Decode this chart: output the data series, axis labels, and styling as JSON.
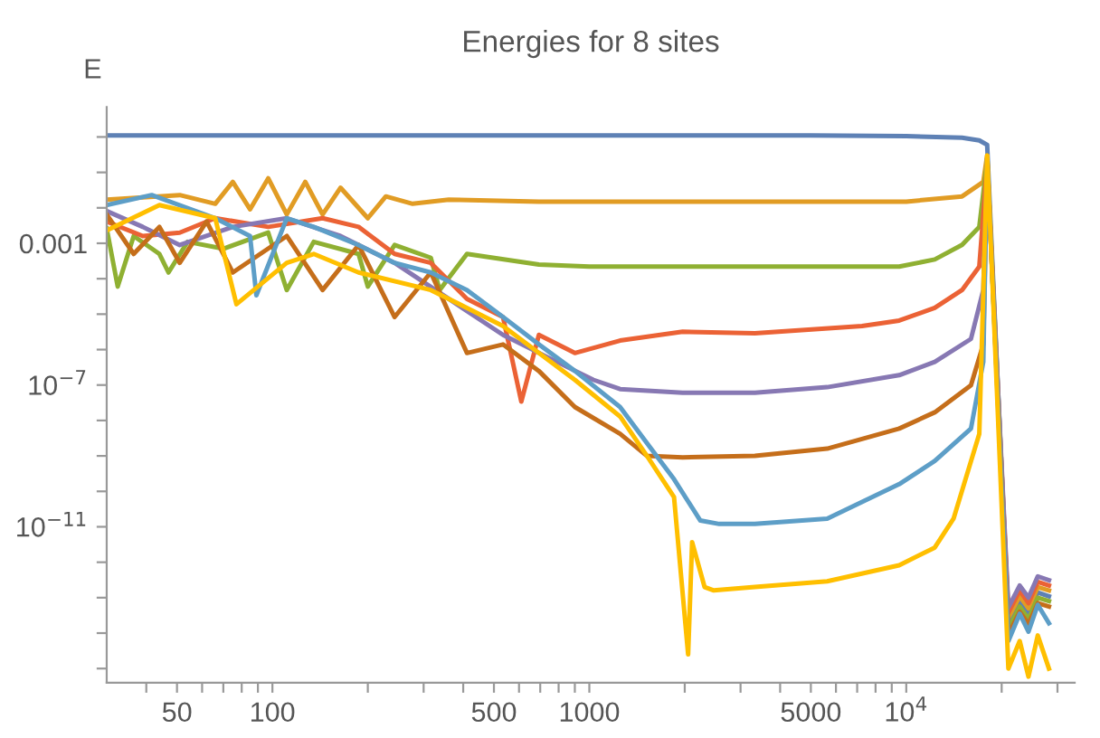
{
  "chart_data": {
    "type": "line",
    "title": "Energies for 8 sites",
    "ylabel": "E",
    "log": "xy",
    "grid": false,
    "legend": false,
    "marker": "none",
    "line_style": "solid",
    "xlim": [
      30,
      34000
    ],
    "ylim": [
      4e-16,
      7
    ],
    "xticks": [
      {
        "value": 40,
        "label": null
      },
      {
        "value": 50,
        "label": "50"
      },
      {
        "value": 60,
        "label": null
      },
      {
        "value": 70,
        "label": null
      },
      {
        "value": 80,
        "label": null
      },
      {
        "value": 90,
        "label": null
      },
      {
        "value": 100,
        "label": "100"
      },
      {
        "value": 200,
        "label": null
      },
      {
        "value": 300,
        "label": null
      },
      {
        "value": 400,
        "label": null
      },
      {
        "value": 500,
        "label": "500"
      },
      {
        "value": 600,
        "label": null
      },
      {
        "value": 700,
        "label": null
      },
      {
        "value": 800,
        "label": null
      },
      {
        "value": 900,
        "label": null
      },
      {
        "value": 1000,
        "label": "1000"
      },
      {
        "value": 2000,
        "label": null
      },
      {
        "value": 3000,
        "label": null
      },
      {
        "value": 4000,
        "label": null
      },
      {
        "value": 5000,
        "label": "5000"
      },
      {
        "value": 6000,
        "label": null
      },
      {
        "value": 7000,
        "label": null
      },
      {
        "value": 8000,
        "label": null
      },
      {
        "value": 9000,
        "label": null
      },
      {
        "value": 10000,
        "label": "10$^{4}$"
      },
      {
        "value": 20000,
        "label": null
      },
      {
        "value": 30000,
        "label": null
      }
    ],
    "yticks": [
      {
        "value": 1,
        "label": null
      },
      {
        "value": 0.1,
        "label": null
      },
      {
        "value": 0.01,
        "label": null
      },
      {
        "value": 0.001,
        "label": "0.001"
      },
      {
        "value": 0.0001,
        "label": null
      },
      {
        "value": 1e-05,
        "label": null
      },
      {
        "value": 1e-06,
        "label": null
      },
      {
        "value": 1e-07,
        "label": "10$^{−7}$"
      },
      {
        "value": 1e-08,
        "label": null
      },
      {
        "value": 1e-09,
        "label": null
      },
      {
        "value": 1e-10,
        "label": null
      },
      {
        "value": 1e-11,
        "label": "10$^{−11}$"
      },
      {
        "value": 1e-12,
        "label": null
      },
      {
        "value": 1e-13,
        "label": null
      },
      {
        "value": 1e-14,
        "label": null
      },
      {
        "value": 1e-15,
        "label": null
      }
    ],
    "series": [
      {
        "color": "#5e81b5",
        "x": [
          30,
          100,
          1000,
          5000,
          10000,
          15000,
          17000,
          18000,
          21000,
          22800,
          24300,
          26000,
          28200
        ],
        "values": [
          1.1,
          1.1,
          1.1,
          1.1,
          1.05,
          0.95,
          0.8,
          0.6,
          1.9e-14,
          7.9e-14,
          3.5e-14,
          1.4e-13,
          1.1e-13
        ]
      },
      {
        "color": "#e19c24",
        "x": [
          30,
          51,
          66,
          75,
          85,
          97,
          111,
          127,
          144,
          164,
          200,
          228,
          277,
          360,
          693,
          1000,
          5000,
          10000,
          15000,
          17500,
          18000,
          21000,
          22800,
          24300,
          26000,
          28200
        ],
        "values": [
          0.017,
          0.023,
          0.013,
          0.054,
          0.0091,
          0.068,
          0.0065,
          0.054,
          0.0065,
          0.037,
          0.0051,
          0.021,
          0.013,
          0.017,
          0.015,
          0.015,
          0.015,
          0.015,
          0.021,
          0.054,
          0.3,
          2.7e-14,
          1.1e-13,
          5e-14,
          2e-13,
          1.6e-13
        ]
      },
      {
        "color": "#8fb032",
        "x": [
          30,
          32.5,
          36.5,
          44,
          47,
          54,
          70,
          97,
          111,
          135,
          187,
          200,
          243,
          316,
          337,
          411,
          693,
          1000,
          5000,
          9500,
          12300,
          15000,
          17000,
          18000,
          21000,
          22800,
          24300,
          26000,
          28200
        ],
        "values": [
          0.0026,
          6e-05,
          0.0016,
          0.0005,
          0.00015,
          0.0011,
          0.0007,
          0.002,
          4.8e-05,
          0.0011,
          0.0005,
          6e-05,
          0.0009,
          0.00039,
          4.8e-05,
          0.0005,
          0.00025,
          0.00022,
          0.00022,
          0.00022,
          0.00035,
          0.0009,
          0.0029,
          0.22,
          1.3e-14,
          5.6e-14,
          2.5e-14,
          1e-13,
          8e-14
        ]
      },
      {
        "color": "#eb6235",
        "x": [
          30,
          39,
          51,
          66,
          97,
          144,
          187,
          243,
          316,
          411,
          534,
          610,
          693,
          900,
          1250,
          1970,
          3330,
          7250,
          9500,
          12300,
          15000,
          17000,
          18000,
          21000,
          22800,
          24300,
          26000,
          28200
        ],
        "values": [
          0.0041,
          0.0016,
          0.002,
          0.0051,
          0.0029,
          0.0051,
          0.0029,
          0.0005,
          0.00028,
          2.7e-05,
          8.3e-06,
          3.4e-08,
          2.6e-06,
          8e-07,
          1.8e-06,
          3.2e-06,
          2.9e-06,
          4.6e-06,
          6.6e-06,
          1.5e-05,
          4.8e-05,
          0.00022,
          0.17,
          3.8e-14,
          1.6e-13,
          7e-14,
          2.8e-13,
          2.2e-13
        ]
      },
      {
        "color": "#8778b3",
        "x": [
          30,
          39,
          51,
          75,
          111,
          164,
          243,
          360,
          534,
          790,
          1030,
          1250,
          1970,
          3330,
          5630,
          9500,
          12300,
          16000,
          17500,
          18000,
          21000,
          22800,
          24300,
          26000,
          28200
        ],
        "values": [
          0.0081,
          0.0029,
          0.00089,
          0.0029,
          0.0051,
          0.0016,
          0.00028,
          2.7e-05,
          2.6e-06,
          4.5e-07,
          1.4e-07,
          7.7e-08,
          6.1e-08,
          6.1e-08,
          8.7e-08,
          1.9e-07,
          4.5e-07,
          2e-06,
          4.8e-05,
          0.2,
          5.3e-14,
          2.2e-13,
          1e-13,
          4e-13,
          3.1e-13
        ]
      },
      {
        "color": "#c56e1a",
        "x": [
          30,
          36.5,
          44,
          51,
          62,
          75,
          111,
          144,
          187,
          243,
          316,
          411,
          534,
          693,
          900,
          1250,
          1520,
          1970,
          3330,
          5630,
          9500,
          12300,
          16000,
          17500,
          18000,
          21000,
          22800,
          24300,
          26000,
          28200
        ],
        "values": [
          0.0065,
          0.0005,
          0.0029,
          0.00028,
          0.0041,
          0.00015,
          0.0016,
          4.8e-05,
          0.00089,
          8.3e-06,
          0.00015,
          8e-07,
          1.4e-06,
          2.5e-07,
          2.4e-08,
          4.2e-09,
          1e-09,
          9.1e-10,
          1e-09,
          1.6e-09,
          5.9e-09,
          1.7e-08,
          9.8e-08,
          1.4e-06,
          0.25,
          9e-15,
          4e-14,
          1.8e-14,
          7e-14,
          5.6e-14
        ]
      },
      {
        "color": "#5d9ec7",
        "x": [
          30,
          41.6,
          66,
          85,
          89,
          111,
          135,
          187,
          243,
          316,
          411,
          534,
          693,
          900,
          1250,
          1520,
          1850,
          2240,
          2570,
          3330,
          5630,
          9500,
          12300,
          16000,
          17500,
          18000,
          21000,
          22800,
          24300,
          26000,
          28200
        ],
        "values": [
          0.012,
          0.023,
          0.0051,
          0.0016,
          3.4e-05,
          0.0051,
          0.0029,
          0.00089,
          0.00028,
          0.00015,
          4.8e-05,
          8.3e-06,
          1.4e-06,
          2.5e-07,
          2.4e-08,
          2.3e-09,
          2.2e-10,
          1.5e-11,
          1.2e-11,
          1.2e-11,
          1.7e-11,
          1.6e-10,
          7.2e-10,
          5.9e-09,
          4.5e-07,
          0.25,
          6e-15,
          3.5e-14,
          1.1e-14,
          6.3e-14,
          1.9e-14
        ]
      },
      {
        "color": "#ffbf00",
        "x": [
          30,
          44,
          66,
          77,
          111,
          135,
          187,
          316,
          411,
          534,
          693,
          900,
          1250,
          1520,
          1850,
          2050,
          2110,
          2310,
          2470,
          3330,
          5630,
          9500,
          12300,
          14100,
          17000,
          18000,
          21000,
          22800,
          24300,
          26000,
          28200
        ],
        "values": [
          0.0023,
          0.012,
          0.0051,
          1.9e-05,
          0.00028,
          0.0005,
          0.00015,
          4.8e-05,
          1.5e-05,
          4.6e-06,
          8e-07,
          1.4e-07,
          1.3e-08,
          1e-09,
          6.9e-11,
          2.5e-15,
          3.7e-12,
          2e-13,
          1.6e-13,
          2e-13,
          2.9e-13,
          8.2e-13,
          2.6e-12,
          1.7e-11,
          4.2e-09,
          0.3,
          1e-15,
          6e-15,
          5.9e-16,
          8.6e-15,
          1e-15
        ]
      }
    ]
  }
}
